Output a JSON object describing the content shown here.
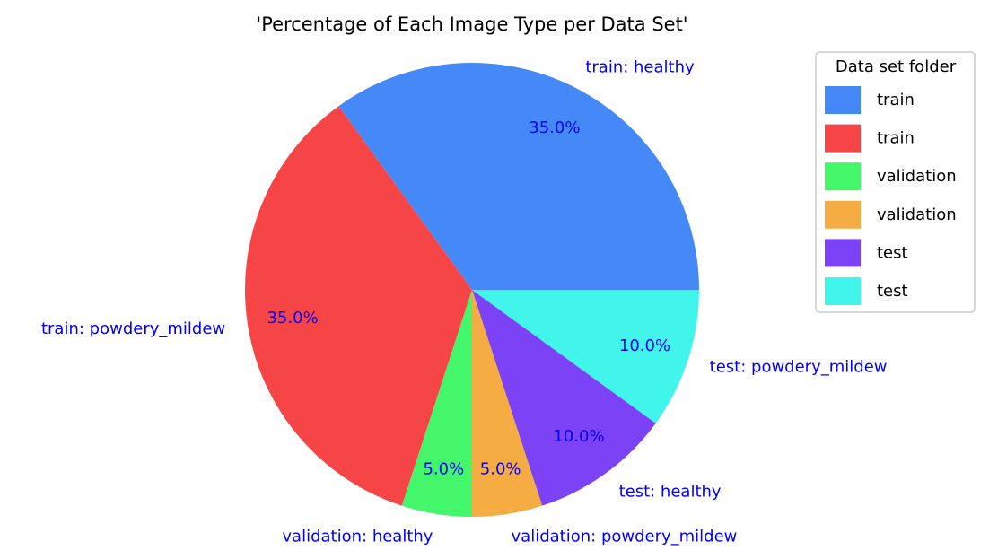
{
  "chart_data": {
    "type": "pie",
    "title": "'Percentage of Each Image Type per Data Set'",
    "labels": [
      "train: healthy",
      "train: powdery_mildew",
      "validation: healthy",
      "validation: powdery_mildew",
      "test: healthy",
      "test: powdery_mildew"
    ],
    "values": [
      35.0,
      35.0,
      5.0,
      5.0,
      10.0,
      10.0
    ],
    "pct_labels": [
      "35.0%",
      "35.0%",
      "5.0%",
      "5.0%",
      "10.0%",
      "10.0%"
    ],
    "colors": [
      "#4589f8",
      "#f54546",
      "#43f66a",
      "#f5ad43",
      "#7b42f6",
      "#42f5ea"
    ],
    "start_angle_deg": 0,
    "direction": "counterclockwise",
    "label_color": "#0000ff",
    "legend": {
      "title": "Data set folder",
      "placement": "upper-right outside",
      "entries": [
        "train",
        "train",
        "validation",
        "validation",
        "test",
        "test"
      ]
    }
  }
}
